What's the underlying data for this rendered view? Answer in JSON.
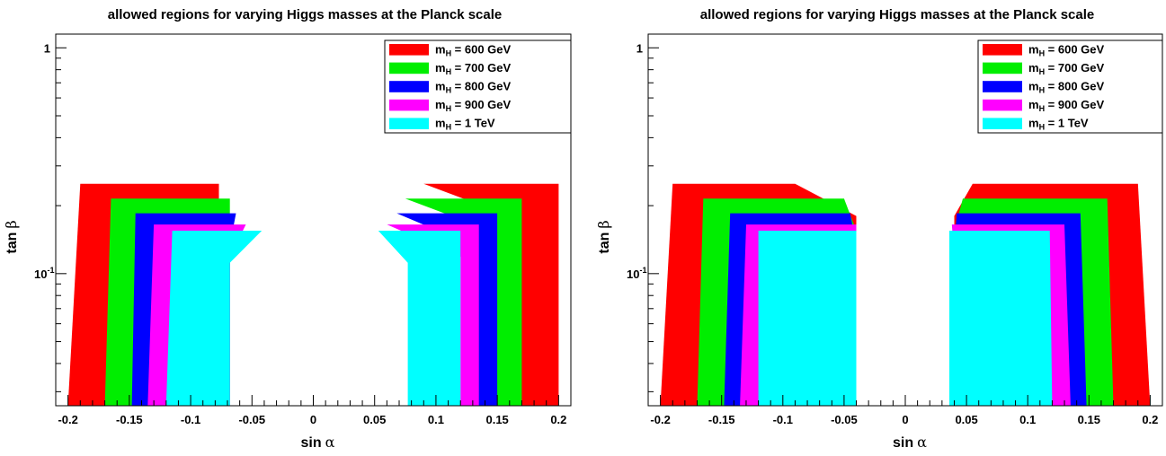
{
  "chart_data": [
    {
      "type": "area",
      "title": "allowed regions for varying Higgs masses at the Planck scale",
      "xlabel": "sin",
      "xlabel_symbol": "α",
      "ylabel": "tan",
      "ylabel_symbol": "β",
      "xlim": [
        -0.21,
        0.21
      ],
      "ylim": [
        0.026,
        1.15
      ],
      "yscale": "log",
      "x_ticks": [
        "-0.2",
        "-0.15",
        "-0.1",
        "-0.05",
        "0",
        "0.05",
        "0.1",
        "0.15",
        "0.2"
      ],
      "y_ticks": [
        {
          "label": "1",
          "value": 1
        },
        {
          "label": "10",
          "exponent": "-1",
          "value": 0.1
        }
      ],
      "legend_position": "top-right",
      "series": [
        {
          "name": "m",
          "subscript": "H",
          "suffix": " = 600 GeV",
          "color": "#ff0000",
          "left": {
            "x_inner_top": -0.077,
            "x_inner_bottom": -0.077,
            "x_outer_top": -0.19,
            "x_outer_bottom": -0.2,
            "y_top": 0.25
          },
          "right": {
            "x_inner_top": 0.09,
            "x_inner_bottom": 0.16,
            "x_outer_top": 0.2,
            "x_outer_bottom": 0.2,
            "y_top": 0.25
          }
        },
        {
          "name": "m",
          "subscript": "H",
          "suffix": " = 700 GeV",
          "color": "#00ee00",
          "left": {
            "x_inner_top": -0.068,
            "x_inner_bottom": -0.068,
            "x_outer_top": -0.165,
            "x_outer_bottom": -0.17,
            "y_top": 0.215
          },
          "right": {
            "x_inner_top": 0.075,
            "x_inner_bottom": 0.145,
            "x_outer_top": 0.17,
            "x_outer_bottom": 0.17,
            "y_top": 0.215
          }
        },
        {
          "name": "m",
          "subscript": "H",
          "suffix": " = 800 GeV",
          "color": "#0000ff",
          "left": {
            "x_inner_top": -0.063,
            "x_inner_bottom": -0.068,
            "x_outer_top": -0.145,
            "x_outer_bottom": -0.148,
            "y_top": 0.185
          },
          "right": {
            "x_inner_top": 0.068,
            "x_inner_bottom": 0.13,
            "x_outer_top": 0.15,
            "x_outer_bottom": 0.15,
            "y_top": 0.185
          }
        },
        {
          "name": "m",
          "subscript": "H",
          "suffix": " = 900 GeV",
          "color": "#ff00ff",
          "left": {
            "x_inner_top": -0.055,
            "x_inner_bottom": -0.068,
            "x_outer_top": -0.13,
            "x_outer_bottom": -0.135,
            "y_top": 0.165
          },
          "right": {
            "x_inner_top": 0.06,
            "x_inner_bottom": 0.12,
            "x_outer_top": 0.135,
            "x_outer_bottom": 0.135,
            "y_top": 0.165
          }
        },
        {
          "name": "m",
          "subscript": "H",
          "suffix": " = 1 TeV",
          "color": "#00ffff",
          "left": {
            "x_inner_top": -0.042,
            "x_inner_bottom": -0.068,
            "x_outer_top": -0.115,
            "x_outer_bottom": -0.12,
            "y_top": 0.155
          },
          "right": {
            "x_inner_top": 0.053,
            "x_inner_bottom": 0.077,
            "x_outer_top": 0.12,
            "x_outer_bottom": 0.12,
            "y_top": 0.155
          }
        }
      ],
      "y_bottom": 0.026
    },
    {
      "type": "area",
      "title": "allowed regions for varying Higgs masses at the Planck scale",
      "xlabel": "sin",
      "xlabel_symbol": "α",
      "ylabel": "tan",
      "ylabel_symbol": "β",
      "xlim": [
        -0.21,
        0.21
      ],
      "ylim": [
        0.026,
        1.15
      ],
      "yscale": "log",
      "x_ticks": [
        "-0.2",
        "-0.15",
        "-0.1",
        "-0.05",
        "0",
        "0.05",
        "0.1",
        "0.15",
        "0.2"
      ],
      "y_ticks": [
        {
          "label": "1",
          "value": 1
        },
        {
          "label": "10",
          "exponent": "-1",
          "value": 0.1
        }
      ],
      "legend_position": "top-right",
      "series": [
        {
          "name": "m",
          "subscript": "H",
          "suffix": " = 600 GeV",
          "color": "#ff0000",
          "left": {
            "x_inner_top": -0.09,
            "x_inner_bottom": -0.04,
            "x_outer_top": -0.19,
            "x_outer_bottom": -0.2,
            "y_top": 0.25
          },
          "right": {
            "x_inner_top": 0.055,
            "x_inner_bottom": 0.04,
            "x_outer_top": 0.19,
            "x_outer_bottom": 0.2,
            "y_top": 0.25
          }
        },
        {
          "name": "m",
          "subscript": "H",
          "suffix": " = 700 GeV",
          "color": "#00ee00",
          "left": {
            "x_inner_top": -0.05,
            "x_inner_bottom": -0.04,
            "x_outer_top": -0.165,
            "x_outer_bottom": -0.17,
            "y_top": 0.215
          },
          "right": {
            "x_inner_top": 0.047,
            "x_inner_bottom": 0.04,
            "x_outer_top": 0.165,
            "x_outer_bottom": 0.17,
            "y_top": 0.215
          }
        },
        {
          "name": "m",
          "subscript": "H",
          "suffix": " = 800 GeV",
          "color": "#0000ff",
          "left": {
            "x_inner_top": -0.045,
            "x_inner_bottom": -0.04,
            "x_outer_top": -0.143,
            "x_outer_bottom": -0.148,
            "y_top": 0.185
          },
          "right": {
            "x_inner_top": 0.042,
            "x_inner_bottom": 0.04,
            "x_outer_top": 0.143,
            "x_outer_bottom": 0.148,
            "y_top": 0.185
          }
        },
        {
          "name": "m",
          "subscript": "H",
          "suffix": " = 900 GeV",
          "color": "#ff00ff",
          "left": {
            "x_inner_top": -0.04,
            "x_inner_bottom": -0.04,
            "x_outer_top": -0.13,
            "x_outer_bottom": -0.135,
            "y_top": 0.165
          },
          "right": {
            "x_inner_top": 0.038,
            "x_inner_bottom": 0.04,
            "x_outer_top": 0.13,
            "x_outer_bottom": 0.135,
            "y_top": 0.165
          }
        },
        {
          "name": "m",
          "subscript": "H",
          "suffix": " = 1 TeV",
          "color": "#00ffff",
          "left": {
            "x_inner_top": -0.04,
            "x_inner_bottom": -0.04,
            "x_outer_top": -0.12,
            "x_outer_bottom": -0.12,
            "y_top": 0.155
          },
          "right": {
            "x_inner_top": 0.036,
            "x_inner_bottom": 0.036,
            "x_outer_top": 0.118,
            "x_outer_bottom": 0.12,
            "y_top": 0.155
          }
        }
      ],
      "y_bottom": 0.026
    }
  ]
}
